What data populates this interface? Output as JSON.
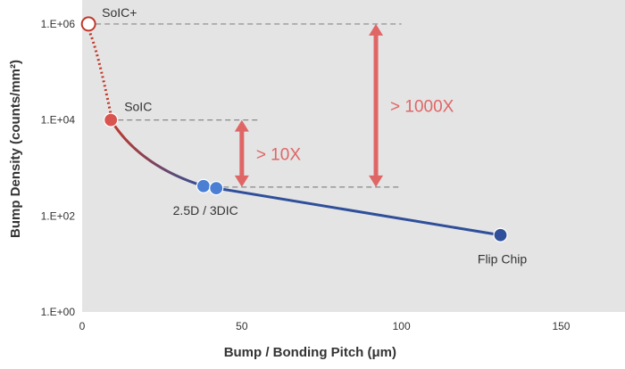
{
  "chart_data": {
    "type": "scatter",
    "title": "",
    "xlabel": "Bump / Bonding Pitch (μm)",
    "ylabel": "Bump Density (counts/mm²)",
    "xlim": [
      0,
      170
    ],
    "ylim_log10": [
      0,
      6.5
    ],
    "y_scale": "log",
    "grid": false,
    "x_ticks": [
      {
        "value": 0,
        "label": "0"
      },
      {
        "value": 50,
        "label": "50"
      },
      {
        "value": 100,
        "label": "100"
      },
      {
        "value": 150,
        "label": "150"
      }
    ],
    "y_ticks": [
      {
        "value": 1,
        "label": "1.E+00"
      },
      {
        "value": 100,
        "label": "1.E+02"
      },
      {
        "value": 10000,
        "label": "1.E+04"
      },
      {
        "value": 1000000,
        "label": "1.E+06"
      }
    ],
    "points": [
      {
        "name": "SoIC+",
        "label": "SoIC+",
        "x": 2,
        "y": 1000000,
        "style": "open",
        "color": "#c0392b"
      },
      {
        "name": "SoIC",
        "label": "SoIC",
        "x": 9,
        "y": 10000,
        "style": "filled",
        "color": "#d9534f"
      },
      {
        "name": "2.5D-a",
        "label": "",
        "x": 38,
        "y": 420,
        "style": "filled",
        "color": "#4a7fd4"
      },
      {
        "name": "2.5D-b",
        "label": "2.5D / 3DIC",
        "x": 42,
        "y": 380,
        "style": "filled",
        "color": "#4a7fd4"
      },
      {
        "name": "Flip Chip",
        "label": "Flip Chip",
        "x": 131,
        "y": 40,
        "style": "filled",
        "color": "#2f4f9a"
      }
    ],
    "reference_levels": [
      {
        "name": "SoIC+ level",
        "y": 1000000,
        "x_end": 100
      },
      {
        "name": "SoIC level",
        "y": 10000,
        "x_end": 55
      },
      {
        "name": "2.5D level",
        "y": 400,
        "x_end": 100
      }
    ],
    "annotations": [
      {
        "text": "> 10X",
        "arrow_x": 50,
        "y_from": 400,
        "y_to": 10000
      },
      {
        "text": "> 1000X",
        "arrow_x": 92,
        "y_from": 400,
        "y_to": 1000000
      }
    ],
    "colors": {
      "plot_background": "#e4e4e4",
      "dotted_curve": "#c0392b",
      "curve_start": "#c0392b",
      "curve_end": "#2f4f9a",
      "arrows": "#e06666",
      "guides": "#888888"
    }
  }
}
